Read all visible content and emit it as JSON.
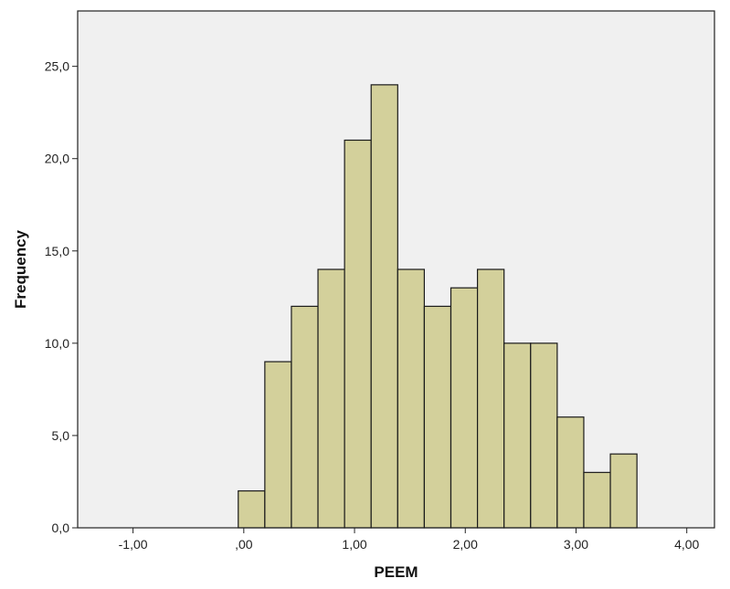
{
  "chart_data": {
    "type": "bar",
    "title": "",
    "xlabel": "PEEM",
    "ylabel": "Frequency",
    "xlim": [
      -1.5,
      4.25
    ],
    "ylim": [
      0,
      28
    ],
    "x_ticks": [
      -1,
      0,
      1,
      2,
      3,
      4
    ],
    "x_tick_labels": [
      "-1,00",
      ",00",
      "1,00",
      "2,00",
      "3,00",
      "4,00"
    ],
    "y_ticks": [
      0,
      5,
      10,
      15,
      20,
      25
    ],
    "y_tick_labels": [
      "0,0",
      "5,0",
      "10,0",
      "15,0",
      "20,0",
      "25,0"
    ],
    "grid": false,
    "colors": {
      "bar_fill": "#d3d09b",
      "bar_stroke": "#1a1a1a",
      "plot_background": "#f0f0f0",
      "frame": "#222222"
    },
    "bins": [
      {
        "start": -0.05,
        "end": 0.19,
        "count": 2
      },
      {
        "start": 0.19,
        "end": 0.43,
        "count": 9
      },
      {
        "start": 0.43,
        "end": 0.67,
        "count": 12
      },
      {
        "start": 0.67,
        "end": 0.91,
        "count": 14
      },
      {
        "start": 0.91,
        "end": 1.15,
        "count": 21
      },
      {
        "start": 1.15,
        "end": 1.39,
        "count": 24
      },
      {
        "start": 1.39,
        "end": 1.63,
        "count": 14
      },
      {
        "start": 1.63,
        "end": 1.87,
        "count": 12
      },
      {
        "start": 1.87,
        "end": 2.11,
        "count": 13
      },
      {
        "start": 2.11,
        "end": 2.35,
        "count": 14
      },
      {
        "start": 2.35,
        "end": 2.59,
        "count": 10
      },
      {
        "start": 2.59,
        "end": 2.83,
        "count": 10
      },
      {
        "start": 2.83,
        "end": 3.07,
        "count": 6
      },
      {
        "start": 3.07,
        "end": 3.31,
        "count": 3
      },
      {
        "start": 3.31,
        "end": 3.55,
        "count": 4
      }
    ]
  }
}
